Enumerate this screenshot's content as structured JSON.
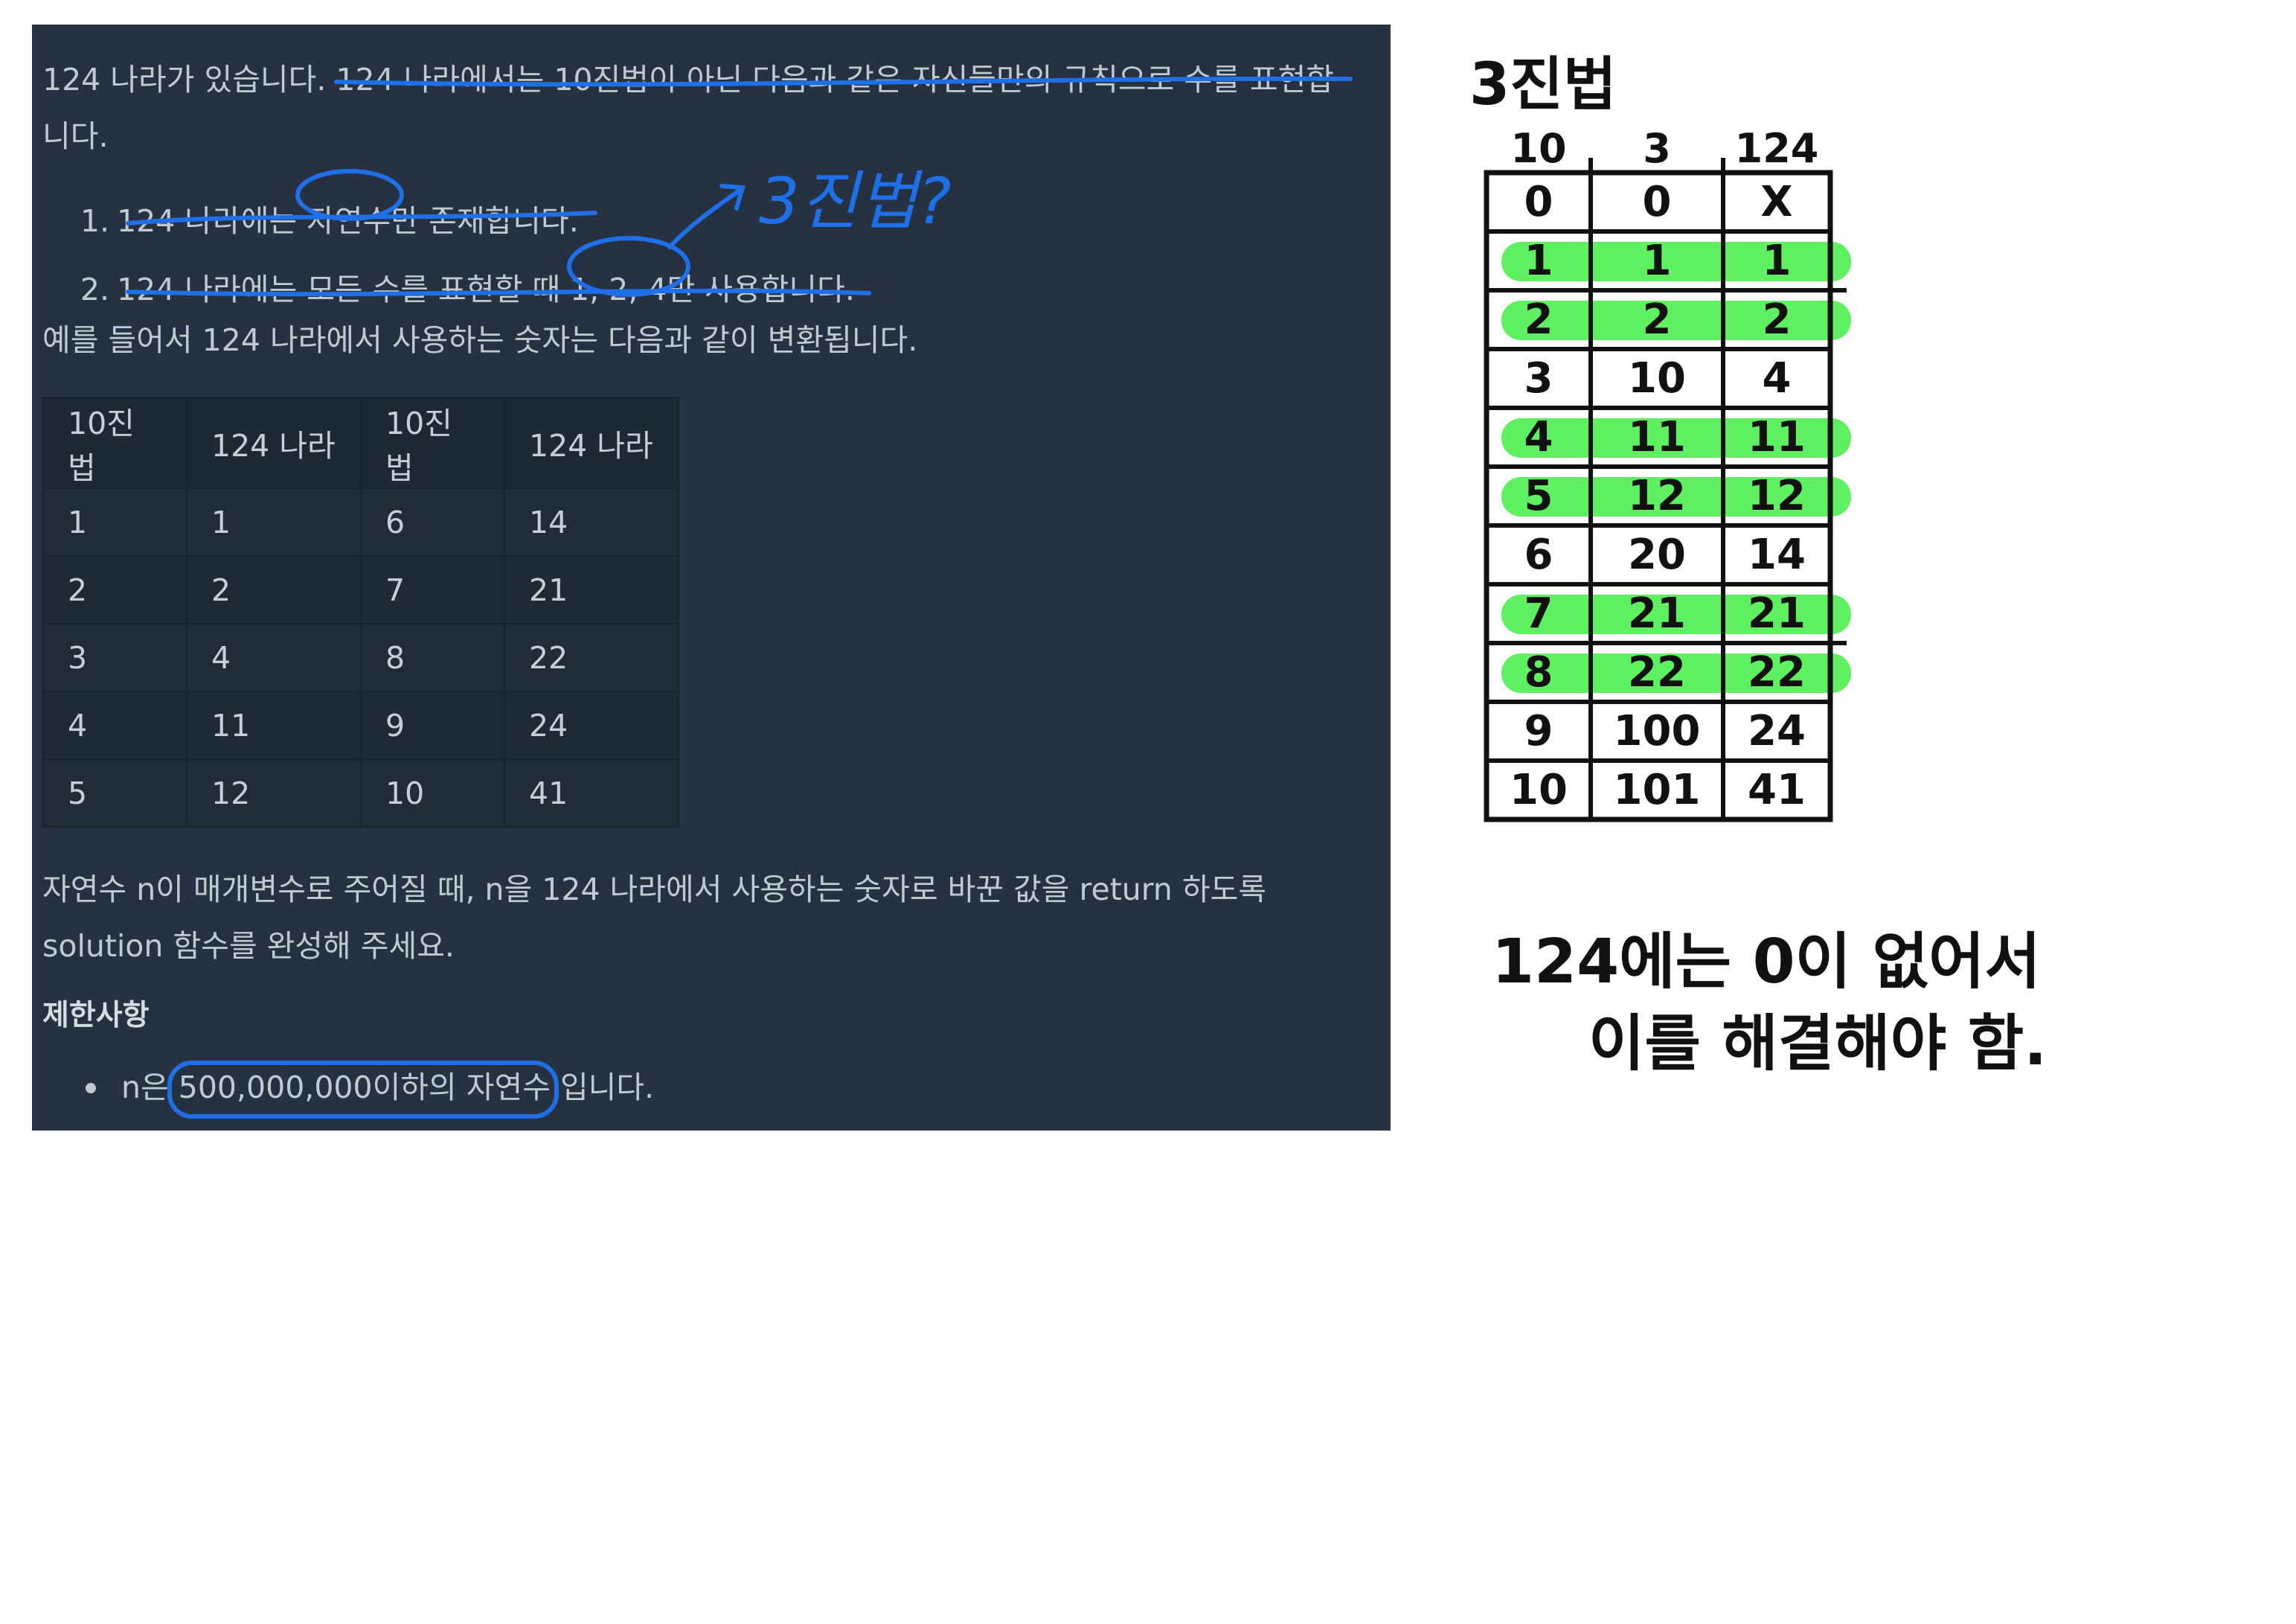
{
  "problem": {
    "intro_line1": "124 나라가 있습니다. 124 나라에서는 10진법이 아닌 다음과 같은 자신들만의 규칙으로 수를 표현합",
    "intro_line2": "니다.",
    "rules": [
      {
        "num": "1.",
        "text": "124 나라에는 자연수만 존재합니다."
      },
      {
        "num": "2.",
        "text": "124 나라에는 모든 수를 표현할 때 1, 2, 4만 사용합니다."
      }
    ],
    "example_intro": "예를 들어서 124 나라에서 사용하는 숫자는 다음과 같이 변환됩니다.",
    "table_headers": [
      "10진법",
      "124 나라",
      "10진법",
      "124 나라"
    ],
    "table_rows": [
      [
        "1",
        "1",
        "6",
        "14"
      ],
      [
        "2",
        "2",
        "7",
        "21"
      ],
      [
        "3",
        "4",
        "8",
        "22"
      ],
      [
        "4",
        "11",
        "9",
        "24"
      ],
      [
        "5",
        "12",
        "10",
        "41"
      ]
    ],
    "task_line1": "자연수 n이 매개변수로 주어질 때, n을 124 나라에서 사용하는 숫자로 바꾼 값을 return 하도록",
    "task_line2": "solution 함수를 완성해 주세요.",
    "constraints_heading": "제한사항",
    "constraint": "n은 500,000,000이하의 자연수 입니다."
  },
  "annotations": {
    "side_note": "3진법?",
    "title": "3진법",
    "table_headers": [
      "10",
      "3",
      "124"
    ],
    "table_rows": [
      [
        "0",
        "0",
        "X"
      ],
      [
        "1",
        "1",
        "1"
      ],
      [
        "2",
        "2",
        "2"
      ],
      [
        "3",
        "10",
        "4"
      ],
      [
        "4",
        "11",
        "11"
      ],
      [
        "5",
        "12",
        "12"
      ],
      [
        "6",
        "20",
        "14"
      ],
      [
        "7",
        "21",
        "21"
      ],
      [
        "8",
        "22",
        "22"
      ],
      [
        "9",
        "100",
        "24"
      ],
      [
        "10",
        "101",
        "41"
      ]
    ],
    "highlighted_rows": [
      1,
      2,
      4,
      5,
      7,
      8
    ],
    "note_line1": "124에는 0이 없어서",
    "note_line2": "이를 해결해야 함.",
    "colors": {
      "pen_blue": "#1f6fe6",
      "highlight_green": "#5ff062",
      "ink": "#111111"
    }
  }
}
